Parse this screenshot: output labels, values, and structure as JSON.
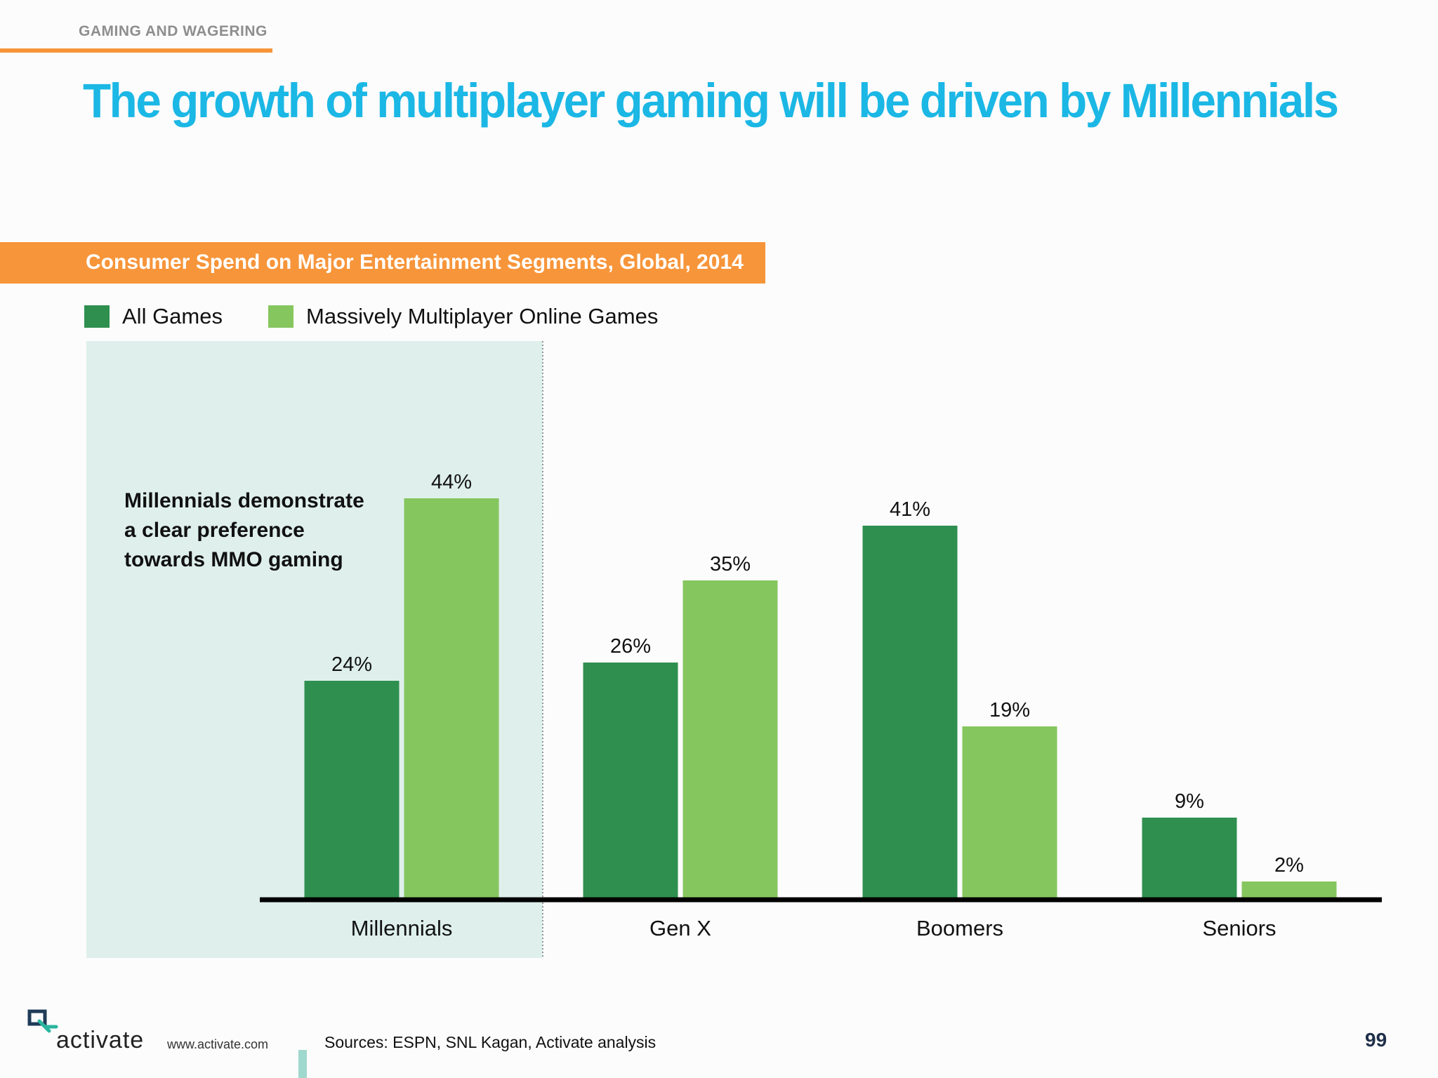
{
  "header": {
    "section_label": "GAMING AND WAGERING",
    "headline": "The growth of multiplayer gaming will be driven by Millennials"
  },
  "chart_banner": "Consumer Spend on Major Entertainment Segments, Global, 2014",
  "callout": {
    "lines": [
      "Millennials demonstrate",
      "a clear preference",
      "towards MMO gaming"
    ]
  },
  "colors": {
    "accent_orange": "#f7953a",
    "headline_blue": "#1bb7e5",
    "all_games_green": "#2f8f4f",
    "mmo_green": "#86c65f",
    "highlight_panel": "#dff0ec"
  },
  "chart_data": {
    "type": "bar",
    "categories": [
      "Millennials",
      "Gen X",
      "Boomers",
      "Seniors"
    ],
    "series": [
      {
        "name": "All Games",
        "values": [
          24,
          26,
          41,
          9
        ],
        "labels": [
          "24%",
          "26%",
          "41%",
          "9%"
        ]
      },
      {
        "name": "Massively Multiplayer Online Games",
        "values": [
          44,
          35,
          19,
          2
        ],
        "labels": [
          "44%",
          "35%",
          "19%",
          "2%"
        ]
      }
    ],
    "unit": "%",
    "ylim": [
      0,
      50
    ],
    "grid": false,
    "legend_position": "top-left",
    "highlighted_category": "Millennials"
  },
  "footer": {
    "brand": "activate",
    "url": "www.activate.com",
    "sources": "Sources: ESPN, SNL Kagan, Activate analysis",
    "page_number": "99"
  }
}
